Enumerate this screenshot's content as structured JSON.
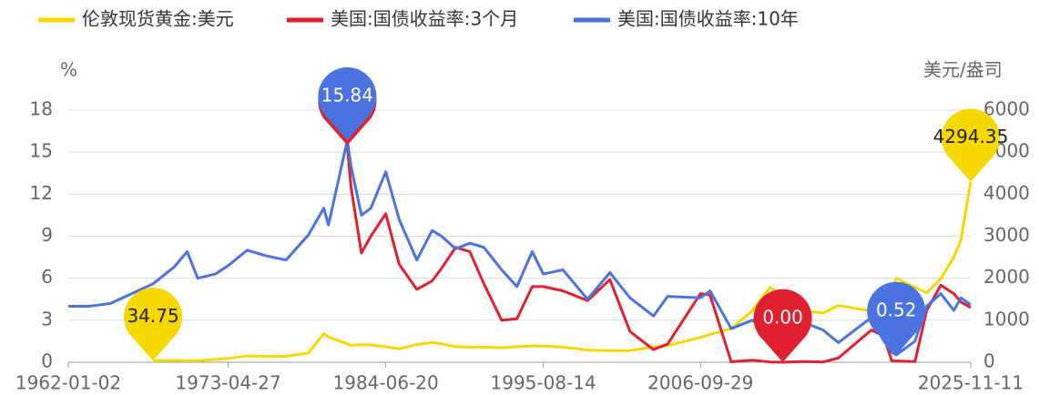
{
  "chart_data": {
    "type": "line",
    "y_label": "%",
    "y2_label": "美元/盎司",
    "x": [
      "1962-01-02",
      "1963-07-01",
      "1965-01-01",
      "1966-07-01",
      "1968-01-02",
      "1969-07-01",
      "1970-06-01",
      "1971-03-01",
      "1972-06-01",
      "1973-04-27",
      "1974-09-01",
      "1976-01-01",
      "1977-06-01",
      "1979-01-01",
      "1980-02-01",
      "1980-06-01",
      "1981-09-30",
      "1982-01-04",
      "1982-10-01",
      "1983-06-01",
      "1984-06-20",
      "1985-06-01",
      "1986-09-01",
      "1987-10-01",
      "1988-06-01",
      "1989-06-01",
      "1990-06-01",
      "1991-06-01",
      "1992-09-01",
      "1993-10-01",
      "1994-11-01",
      "1995-08-14",
      "1997-01-01",
      "1998-10-01",
      "2000-05-01",
      "2001-10-01",
      "2003-06-01",
      "2004-06-01",
      "2006-09-29",
      "2007-06-01",
      "2008-12-01",
      "2010-06-01",
      "2011-09-01",
      "2012-07-24",
      "2013-12-01",
      "2015-06-01",
      "2016-07-01",
      "2018-11-01",
      "2019-09-01",
      "2020-04-15",
      "2020-08-04",
      "2021-12-01",
      "2022-10-01",
      "2023-10-01",
      "2024-09-01",
      "2025-03-01",
      "2025-11-11"
    ],
    "series": [
      {
        "name": "伦敦现货黄金:美元",
        "color": "#f5d800",
        "axis": "y2",
        "values": [
          null,
          null,
          null,
          null,
          34.75,
          42,
          35,
          38,
          65,
          90,
          150,
          140,
          140,
          220,
          680,
          600,
          440,
          400,
          420,
          410,
          370,
          320,
          420,
          470,
          440,
          370,
          360,
          360,
          345,
          370,
          385,
          385,
          360,
          290,
          275,
          280,
          360,
          395,
          590,
          660,
          800,
          1230,
          1780,
          1600,
          1230,
          1170,
          1350,
          1220,
          1510,
          1700,
          2000,
          1780,
          1650,
          1990,
          2500,
          2900,
          4294.35
        ]
      },
      {
        "name": "美国:国债收益率:3个月",
        "color": "#e0202e",
        "values": [
          null,
          null,
          null,
          null,
          null,
          null,
          null,
          null,
          null,
          null,
          null,
          null,
          null,
          null,
          null,
          null,
          15.49,
          12.5,
          7.8,
          9.0,
          10.6,
          7.0,
          5.2,
          5.8,
          6.7,
          8.2,
          7.9,
          5.6,
          3.0,
          3.1,
          5.4,
          5.4,
          5.1,
          4.4,
          5.9,
          2.2,
          0.9,
          1.3,
          4.9,
          4.8,
          0.03,
          0.15,
          0.02,
          0.0,
          0.05,
          0.02,
          0.3,
          2.3,
          1.9,
          0.1,
          0.09,
          0.05,
          3.7,
          5.5,
          4.9,
          4.3,
          3.9
        ]
      },
      {
        "name": "美国:国债收益率:10年",
        "color": "#4a72e0",
        "values": [
          4.0,
          4.0,
          4.2,
          4.9,
          5.6,
          6.8,
          7.9,
          6.0,
          6.3,
          6.9,
          8.0,
          7.6,
          7.3,
          9.1,
          11.0,
          9.8,
          15.84,
          14.0,
          10.5,
          11.0,
          13.6,
          10.2,
          7.3,
          9.4,
          9.0,
          8.1,
          8.5,
          8.2,
          6.6,
          5.4,
          7.9,
          6.3,
          6.6,
          4.5,
          6.4,
          4.6,
          3.3,
          4.7,
          4.6,
          5.1,
          2.4,
          3.0,
          2.0,
          1.5,
          2.9,
          2.3,
          1.4,
          3.2,
          1.6,
          0.7,
          0.52,
          1.5,
          4.0,
          4.9,
          3.7,
          4.6,
          4.1
        ]
      }
    ],
    "annotations": [
      {
        "x": "1968-01-02",
        "value": 34.75,
        "label": "34.75",
        "axis": "y2",
        "color": "#f5d800",
        "text_color": "#222"
      },
      {
        "x": "2025-11-11",
        "value": 4294.35,
        "label": "4294.35",
        "axis": "y2",
        "color": "#f5d800",
        "text_color": "#222"
      },
      {
        "x": "1981-09-30",
        "value": 15.49,
        "label": "15.49",
        "color": "#e0202e",
        "text_color": "#fff"
      },
      {
        "x": "2012-07-24",
        "value": 0.0,
        "label": "0.00",
        "color": "#e0202e",
        "text_color": "#fff"
      },
      {
        "x": "1981-09-30",
        "value": 15.84,
        "label": "15.84",
        "color": "#4a72e0",
        "text_color": "#fff"
      },
      {
        "x": "2020-08-04",
        "value": 0.52,
        "label": "0.52",
        "color": "#4a72e0",
        "text_color": "#fff"
      }
    ],
    "xlim": [
      "1962-01-02",
      "2025-11-11"
    ],
    "xticks": [
      "1962-01-02",
      "1973-04-27",
      "1984-06-20",
      "1995-08-14",
      "2006-09-29",
      "2025-11-11"
    ],
    "ylim": [
      0,
      18
    ],
    "yticks": [
      0,
      3,
      6,
      9,
      12,
      15,
      18
    ],
    "y2lim": [
      0,
      6000
    ],
    "y2ticks": [
      0,
      1000,
      2000,
      3000,
      4000,
      5000,
      6000
    ],
    "grid": true
  }
}
